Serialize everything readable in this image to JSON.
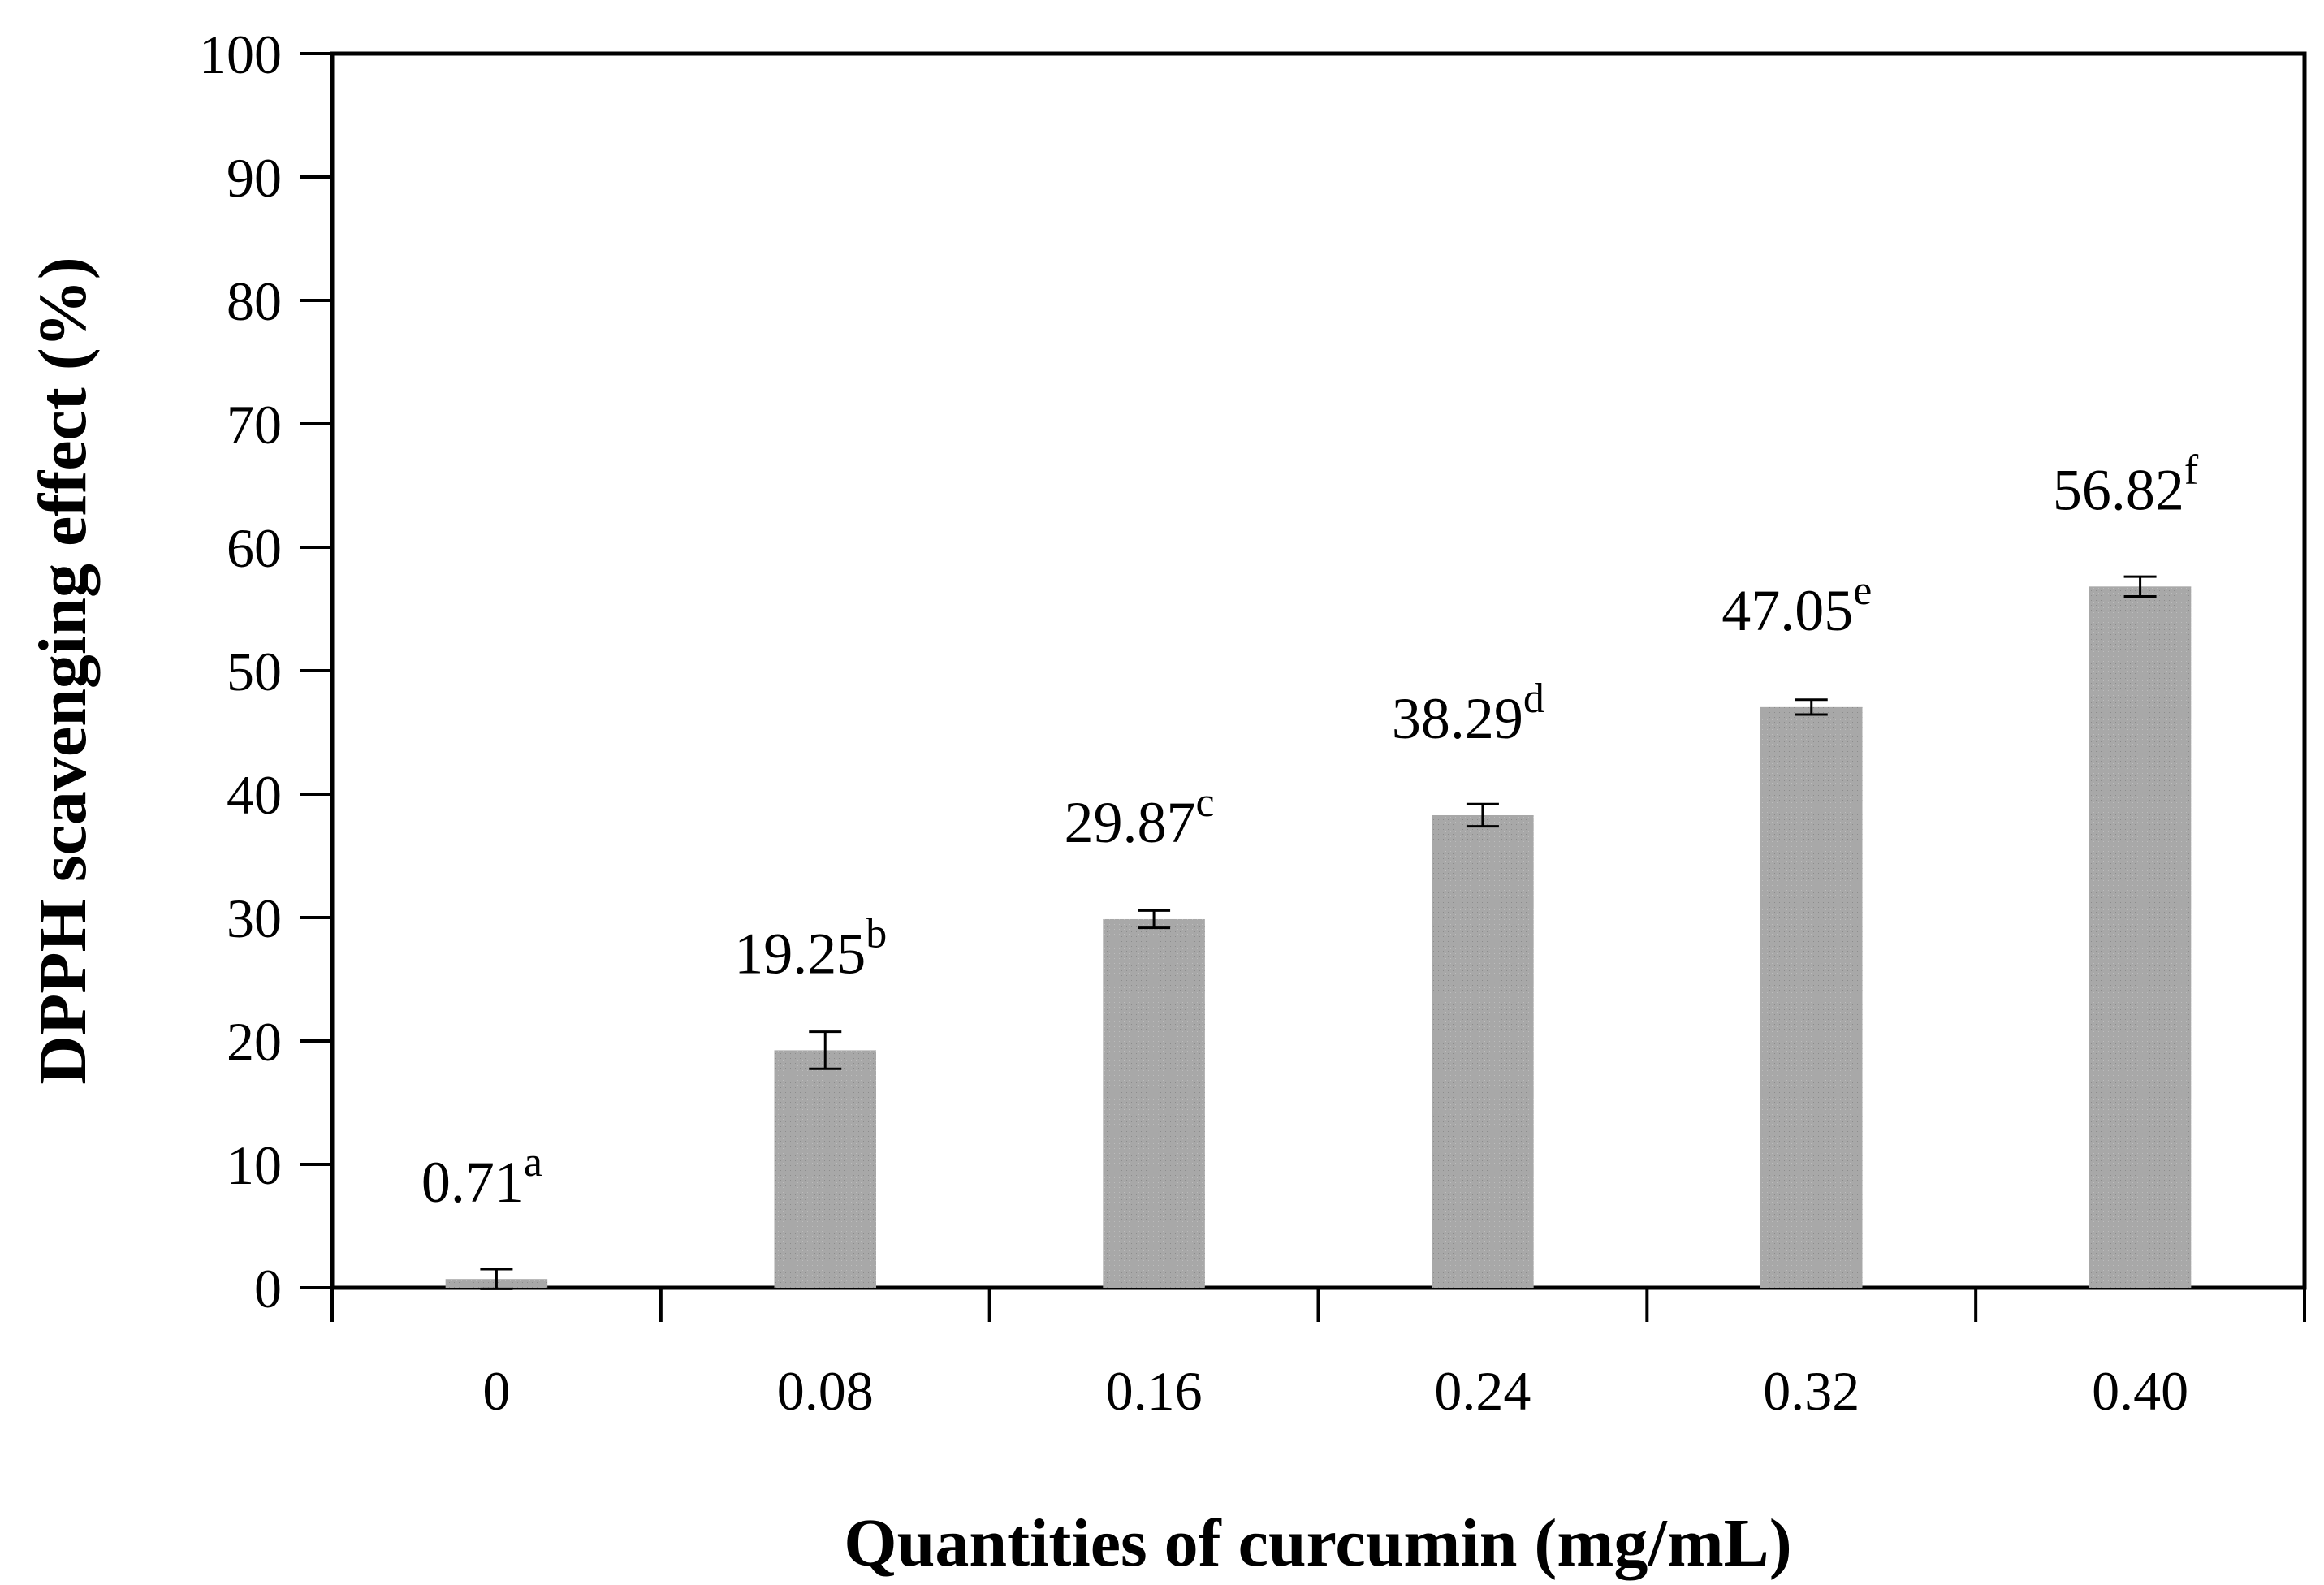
{
  "chart_data": {
    "type": "bar",
    "title": "",
    "xlabel": "Quantities of curcumin (mg/mL)",
    "ylabel": "DPPH scavenging effect (%)",
    "ylim": [
      0,
      100
    ],
    "yticks": [
      0,
      10,
      20,
      30,
      40,
      50,
      60,
      70,
      80,
      90,
      100
    ],
    "categories": [
      "0",
      "0.08",
      "0.16",
      "0.24",
      "0.32",
      "0.40"
    ],
    "values": [
      0.71,
      19.25,
      29.87,
      38.29,
      47.05,
      56.82
    ],
    "errors": [
      0.8,
      1.5,
      0.7,
      0.9,
      0.6,
      0.8
    ],
    "value_labels": [
      "0.71",
      "19.25",
      "29.87",
      "38.29",
      "47.05",
      "56.82"
    ],
    "significance_letters": [
      "a",
      "b",
      "c",
      "d",
      "e",
      "f"
    ],
    "grid": false,
    "bar_color": "#a6a6a6"
  }
}
